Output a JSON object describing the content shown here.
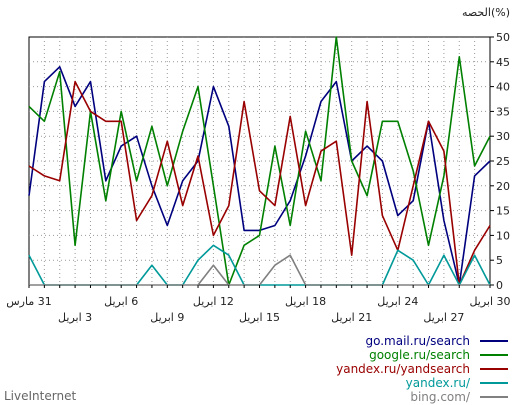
{
  "chart_data": {
    "type": "line",
    "ylabel": "الحصه(%)",
    "ylim": [
      0,
      50
    ],
    "yticks": [
      0,
      5,
      10,
      15,
      20,
      25,
      30,
      35,
      40,
      45,
      50
    ],
    "grid": true,
    "x_direction": "right-to-left",
    "x_count": 31,
    "xticks_row1": [
      "30 ابريل",
      "24 ابريل",
      "18 ابريل",
      "12 ابريل",
      "6 ابريل",
      "31 مارس"
    ],
    "xticks_row2": [
      "27 ابريل",
      "21 ابريل",
      "15 ابريل",
      "9 ابريل",
      "3 ابريل"
    ],
    "legend_position": "bottom-right",
    "series": [
      {
        "name": "go.mail.ru/search",
        "color": "#00007f",
        "values": [
          25,
          22,
          0,
          13,
          33,
          17,
          14,
          25,
          28,
          25,
          41,
          37,
          26,
          17,
          12,
          11,
          11,
          32,
          40,
          25,
          21,
          12,
          20,
          30,
          28,
          21,
          41,
          36,
          44,
          41,
          18
        ]
      },
      {
        "name": "google.ru/search",
        "color": "#008000",
        "values": [
          30,
          24,
          46,
          22,
          8,
          23,
          33,
          33,
          18,
          25,
          50,
          21,
          31,
          12,
          28,
          10,
          8,
          0,
          20,
          40,
          31,
          20,
          32,
          21,
          35,
          17,
          35,
          8,
          43,
          33,
          36
        ]
      },
      {
        "name": "yandex.ru/yandsearch",
        "color": "#990000",
        "values": [
          12,
          7,
          0,
          27,
          33,
          20,
          7,
          14,
          37,
          6,
          29,
          27,
          16,
          34,
          16,
          19,
          37,
          16,
          10,
          26,
          16,
          29,
          18,
          13,
          33,
          33,
          35,
          41,
          21,
          22,
          24
        ]
      },
      {
        "name": "yandex.ru/",
        "color": "#009999",
        "values": [
          0,
          6,
          0,
          6,
          0,
          5,
          7,
          0,
          0,
          0,
          0,
          0,
          0,
          0,
          0,
          0,
          0,
          6,
          8,
          5,
          0,
          0,
          4,
          0,
          0,
          0,
          0,
          0,
          0,
          0,
          6
        ]
      },
      {
        "name": "bing.com/",
        "color": "#808080",
        "values": [
          0,
          0,
          0,
          0,
          0,
          0,
          0,
          0,
          0,
          0,
          0,
          0,
          0,
          6,
          4,
          0,
          0,
          0,
          4,
          0,
          0,
          0,
          0,
          0,
          0,
          0,
          0,
          0,
          0,
          0,
          0
        ]
      }
    ]
  },
  "footer": {
    "brand": "LiveInternet"
  }
}
